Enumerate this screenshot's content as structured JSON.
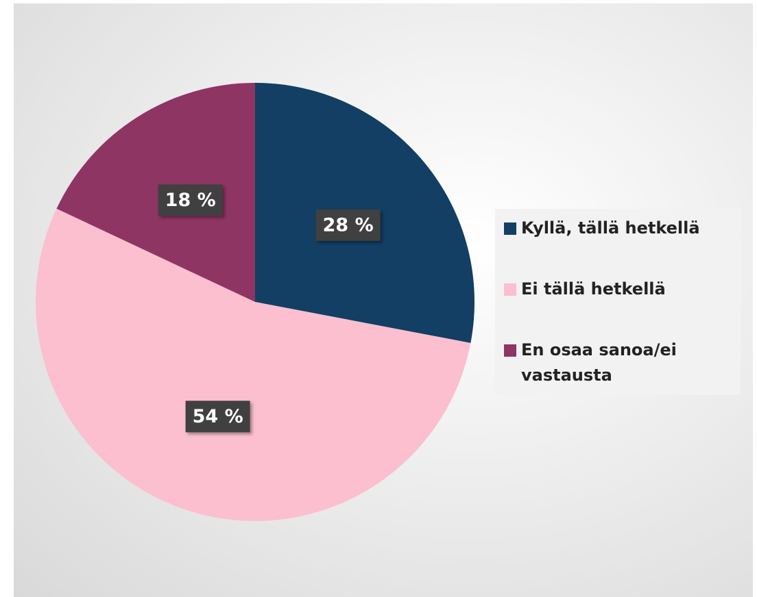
{
  "chart_data": {
    "type": "pie",
    "categories": [
      "Kyllä, tällä hetkellä",
      "Ei tällä hetkellä",
      "En osaa sanoa/ei vastausta"
    ],
    "values": [
      28,
      54,
      18
    ],
    "value_labels": [
      "28 %",
      "54 %",
      "18 %"
    ],
    "colors": [
      "#123f63",
      "#fbbfcf",
      "#8e3563"
    ],
    "legend": "right"
  }
}
